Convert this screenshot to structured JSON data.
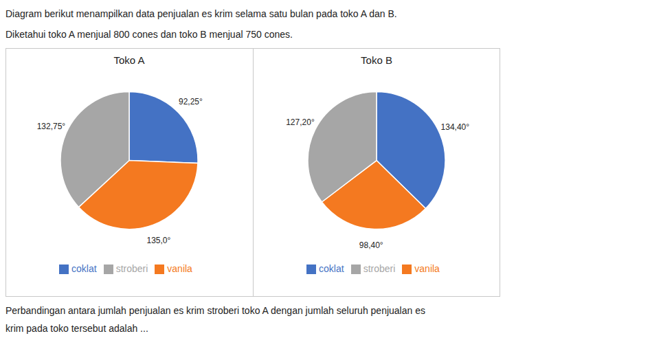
{
  "chart_data": [
    {
      "type": "pie",
      "title": "Toko A",
      "categories": [
        "coklat",
        "vanila",
        "stroberi"
      ],
      "values": [
        92.25,
        135.0,
        132.75
      ],
      "value_labels": [
        "92,25°",
        "135,0°",
        "132,75°"
      ],
      "colors": [
        "#4472c4",
        "#f47920",
        "#a6a6a6"
      ],
      "data_labels": true,
      "legend": "bottom"
    },
    {
      "type": "pie",
      "title": "Toko B",
      "categories": [
        "coklat",
        "vanila",
        "stroberi"
      ],
      "values": [
        134.4,
        98.4,
        127.2
      ],
      "value_labels": [
        "134,40°",
        "98,40°",
        "127,20°"
      ],
      "colors": [
        "#4472c4",
        "#f47920",
        "#a6a6a6"
      ],
      "data_labels": true,
      "legend": "bottom"
    }
  ],
  "annotations": [
    "Diagram berikut menampilkan data penjualan es krim selama satu bulan pada toko A dan B.",
    "Diketahui toko A menjual 800 cones dan toko B menjual 750 cones.",
    "Perbandingan antara jumlah penjualan es krim stroberi toko A dengan jumlah seluruh penjualan es",
    "krim pada toko tersebut adalah ..."
  ]
}
